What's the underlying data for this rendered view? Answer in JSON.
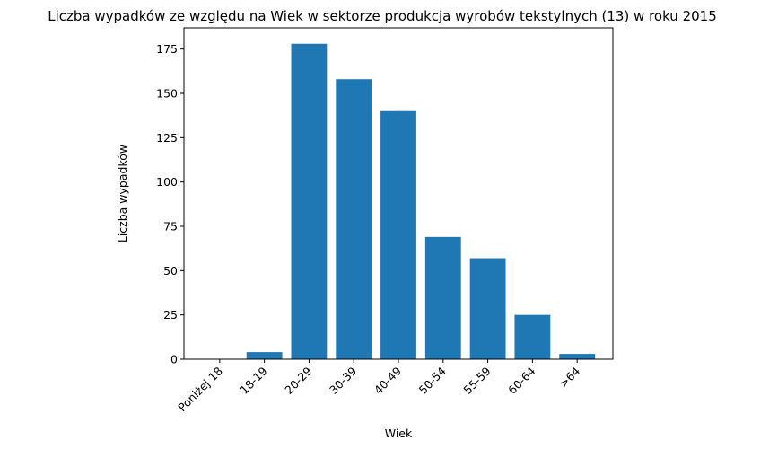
{
  "chart_data": {
    "type": "bar",
    "title": "Liczba wypadków ze względu na Wiek w sektorze produkcja wyrobów tekstylnych  (13)   w roku 2015",
    "xlabel": "Wiek",
    "ylabel": "Liczba wypadków",
    "categories": [
      "Poniżej 18",
      "18-19",
      "20-29",
      "30-39",
      "40-49",
      "50-54",
      "55-59",
      "60-64",
      ">64"
    ],
    "values": [
      0,
      4,
      178,
      158,
      140,
      69,
      57,
      25,
      3
    ],
    "ylim": [
      0,
      187
    ],
    "yticks": [
      0,
      25,
      50,
      75,
      100,
      125,
      150,
      175
    ],
    "bar_color": "#1f77b4",
    "grid": false,
    "legend": null
  }
}
